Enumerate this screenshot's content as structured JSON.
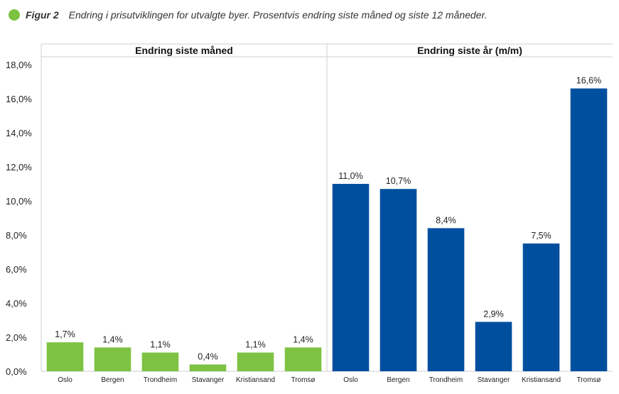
{
  "caption": {
    "label": "Figur 2",
    "text": "Endring i prisutviklingen for utvalgte byer. Prosentvis endring siste måned og siste 12 måneder."
  },
  "colors": {
    "accent_dot": "#7dc242"
  },
  "chart_data": [
    {
      "type": "bar",
      "title": "Endring siste måned",
      "categories": [
        "Oslo",
        "Bergen",
        "Trondheim",
        "Stavanger",
        "Kristiansand",
        "Tromsø"
      ],
      "values": [
        1.7,
        1.4,
        1.1,
        0.4,
        1.1,
        1.4
      ],
      "data_labels": [
        "1,7%",
        "1,4%",
        "1,1%",
        "0,4%",
        "1,1%",
        "1,4%"
      ],
      "color": "#7dc242",
      "ylim": [
        0,
        18
      ],
      "yticks": [
        "0,0%",
        "2,0%",
        "4,0%",
        "6,0%",
        "8,0%",
        "10,0%",
        "12,0%",
        "14,0%",
        "16,0%",
        "18,0%"
      ],
      "grid": false
    },
    {
      "type": "bar",
      "title": "Endring siste år (m/m)",
      "categories": [
        "Oslo",
        "Bergen",
        "Trondheim",
        "Stavanger",
        "Kristiansand",
        "Tromsø"
      ],
      "values": [
        11.0,
        10.7,
        8.4,
        2.9,
        7.5,
        16.6
      ],
      "data_labels": [
        "11,0%",
        "10,7%",
        "8,4%",
        "2,9%",
        "7,5%",
        "16,6%"
      ],
      "color": "#004f9f",
      "ylim": [
        0,
        18
      ],
      "grid": false
    }
  ]
}
